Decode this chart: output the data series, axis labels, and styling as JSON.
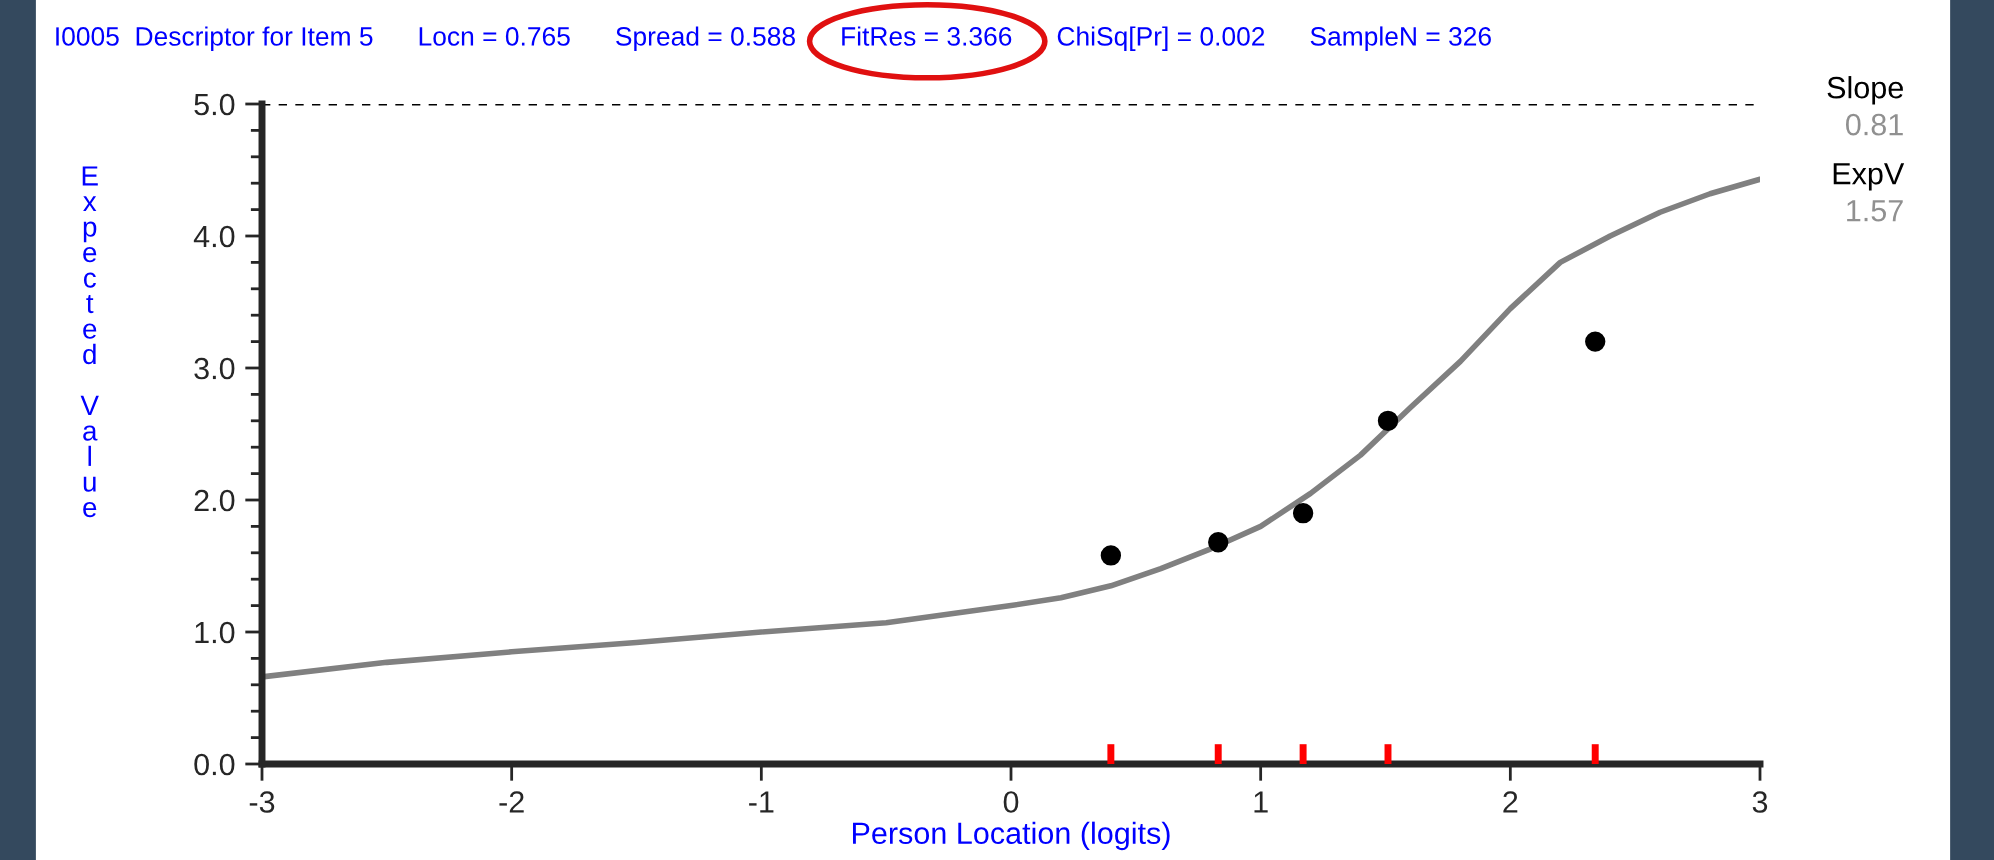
{
  "chart_data": {
    "type": "line",
    "title": "I0005  Descriptor for Item 5      Locn = 0.765      Spread = 0.588      FitRes = 3.366      ChiSq[Pr] = 0.002      SampleN = 326",
    "xlabel": "Person Location (logits)",
    "ylabel": "Expected Value",
    "series": [
      {
        "color": "#808080",
        "x": [
          -3,
          -2.5,
          -2,
          -1.5,
          -1,
          -0.5,
          0,
          0.2,
          0.4,
          0.6,
          0.8,
          1.0,
          1.2,
          1.4,
          1.6,
          1.8,
          2.0,
          2.2,
          2.4,
          2.6,
          2.8,
          3.0
        ],
        "values": [
          0.66,
          0.77,
          0.85,
          0.92,
          1.0,
          1.07,
          1.2,
          1.26,
          1.35,
          1.48,
          1.63,
          1.8,
          2.05,
          2.34,
          2.7,
          3.05,
          3.45,
          3.8,
          4.0,
          4.18,
          4.32,
          4.43
        ]
      },
      {
        "type": "scatter",
        "color": "#000000",
        "marker": "circle",
        "x": [
          0.4,
          0.83,
          1.17,
          1.51,
          2.34
        ],
        "values": [
          1.58,
          1.68,
          1.9,
          2.6,
          3.2
        ]
      }
    ],
    "xlim": [
      -3,
      3
    ],
    "xticks": [
      -3,
      -2,
      -1,
      0,
      1,
      2,
      3
    ],
    "ylim": [
      0,
      5
    ],
    "yticks": [
      {
        "value": 0,
        "label": "0.0"
      },
      {
        "value": 1,
        "label": "1.0"
      },
      {
        "value": 2,
        "label": "2.0"
      },
      {
        "value": 3,
        "label": "3.0"
      },
      {
        "value": 4,
        "label": "4.0"
      },
      {
        "value": 5,
        "label": "5.0"
      }
    ],
    "ref_lines": [
      {
        "axis": "y",
        "value": 5,
        "color": "#000000",
        "line_style": "dashed"
      }
    ],
    "annotations": [
      "Slope",
      "0.81",
      "ExpV",
      "1.57"
    ],
    "grid": false,
    "legend": false
  }
}
